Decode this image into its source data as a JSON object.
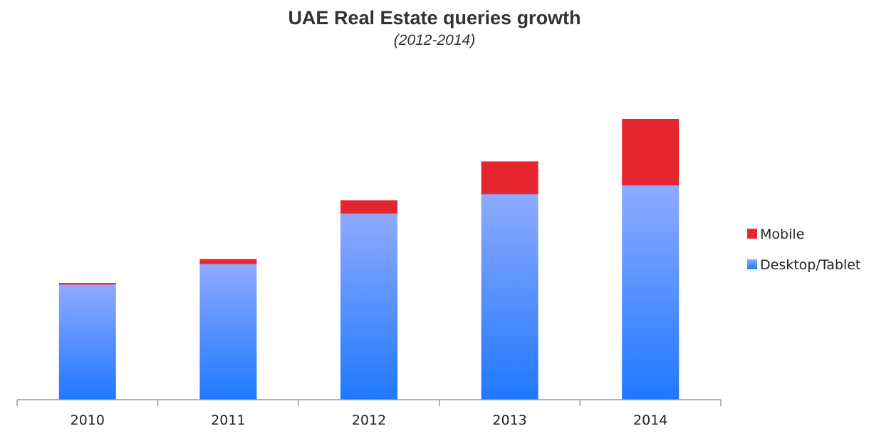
{
  "chart_data": {
    "type": "bar",
    "stacked": true,
    "title": "UAE Real Estate queries growth",
    "subtitle": "(2012-2014)",
    "categories": [
      "2010",
      "2011",
      "2012",
      "2013",
      "2014"
    ],
    "series": [
      {
        "name": "Desktop/Tablet",
        "color": "#4a8cff",
        "values": [
          41,
          48.3,
          66.3,
          73.2,
          76.3
        ]
      },
      {
        "name": "Mobile",
        "color": "#e52631",
        "values": [
          0.6,
          1.8,
          4.7,
          11.7,
          23.7
        ]
      }
    ],
    "ylim": [
      0,
      100
    ],
    "grid": false,
    "legend": {
      "position": "right",
      "entries": [
        "Mobile",
        "Desktop/Tablet"
      ]
    }
  }
}
